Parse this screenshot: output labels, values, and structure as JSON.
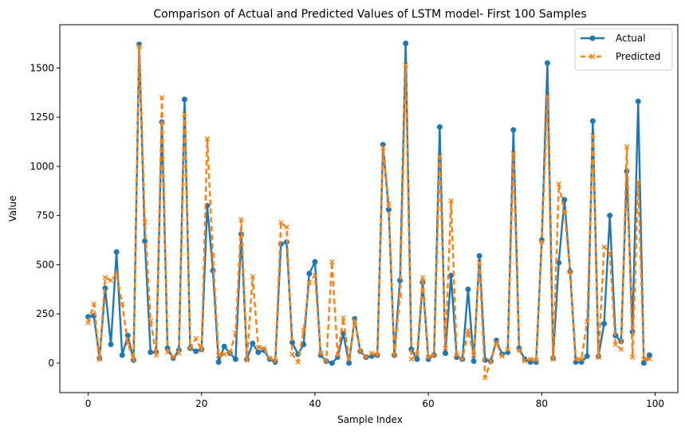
{
  "chart_data": {
    "type": "line",
    "title": "Comparison of Actual and Predicted Values of LSTM model- First 100 Samples",
    "xlabel": "Sample Index",
    "ylabel": "Value",
    "xlim": [
      -5,
      104
    ],
    "ylim": [
      -150,
      1720
    ],
    "xticks": [
      0,
      20,
      40,
      60,
      80,
      100
    ],
    "yticks": [
      0,
      250,
      500,
      750,
      1000,
      1250,
      1500
    ],
    "grid": false,
    "legend": "top-right",
    "x": [
      0,
      1,
      2,
      3,
      4,
      5,
      6,
      7,
      8,
      9,
      10,
      11,
      12,
      13,
      14,
      15,
      16,
      17,
      18,
      19,
      20,
      21,
      22,
      23,
      24,
      25,
      26,
      27,
      28,
      29,
      30,
      31,
      32,
      33,
      34,
      35,
      36,
      37,
      38,
      39,
      40,
      41,
      42,
      43,
      44,
      45,
      46,
      47,
      48,
      49,
      50,
      51,
      52,
      53,
      54,
      55,
      56,
      57,
      58,
      59,
      60,
      61,
      62,
      63,
      64,
      65,
      66,
      67,
      68,
      69,
      70,
      71,
      72,
      73,
      74,
      75,
      76,
      77,
      78,
      79,
      80,
      81,
      82,
      83,
      84,
      85,
      86,
      87,
      88,
      89,
      90,
      91,
      92,
      93,
      94,
      95,
      96,
      97,
      98,
      99
    ],
    "series": [
      {
        "name": "Actual",
        "color": "#1f77b4",
        "style": "solid",
        "marker": "circle",
        "values": [
          235,
          240,
          25,
          380,
          95,
          565,
          40,
          140,
          15,
          1620,
          620,
          55,
          55,
          1225,
          75,
          25,
          65,
          1340,
          75,
          60,
          70,
          800,
          470,
          5,
          85,
          50,
          20,
          655,
          20,
          100,
          55,
          65,
          20,
          5,
          605,
          615,
          105,
          45,
          95,
          455,
          515,
          40,
          10,
          0,
          30,
          150,
          0,
          225,
          60,
          30,
          35,
          40,
          1110,
          780,
          40,
          420,
          1625,
          70,
          20,
          410,
          20,
          40,
          1200,
          50,
          445,
          30,
          20,
          375,
          10,
          545,
          15,
          10,
          115,
          45,
          55,
          1185,
          75,
          20,
          5,
          5,
          625,
          1525,
          25,
          510,
          830,
          465,
          5,
          5,
          35,
          1230,
          35,
          200,
          750,
          140,
          110,
          975,
          160,
          1330,
          0,
          40
        ]
      },
      {
        "name": "Predicted",
        "color": "#ff7f0e",
        "style": "dashed",
        "marker": "x",
        "values": [
          205,
          300,
          20,
          435,
          420,
          455,
          300,
          100,
          15,
          1610,
          715,
          215,
          40,
          1350,
          55,
          30,
          50,
          1265,
          75,
          125,
          65,
          1140,
          545,
          40,
          45,
          50,
          155,
          730,
          15,
          440,
          80,
          75,
          25,
          10,
          715,
          690,
          45,
          5,
          165,
          410,
          445,
          50,
          10,
          515,
          40,
          230,
          20,
          215,
          60,
          30,
          50,
          40,
          1095,
          810,
          40,
          340,
          1515,
          20,
          45,
          435,
          30,
          40,
          1050,
          75,
          825,
          40,
          20,
          165,
          40,
          510,
          -75,
          10,
          105,
          35,
          70,
          1065,
          65,
          10,
          20,
          15,
          615,
          1355,
          20,
          910,
          770,
          465,
          20,
          20,
          210,
          1155,
          30,
          590,
          560,
          95,
          70,
          1100,
          30,
          920,
          20,
          20
        ]
      }
    ]
  }
}
